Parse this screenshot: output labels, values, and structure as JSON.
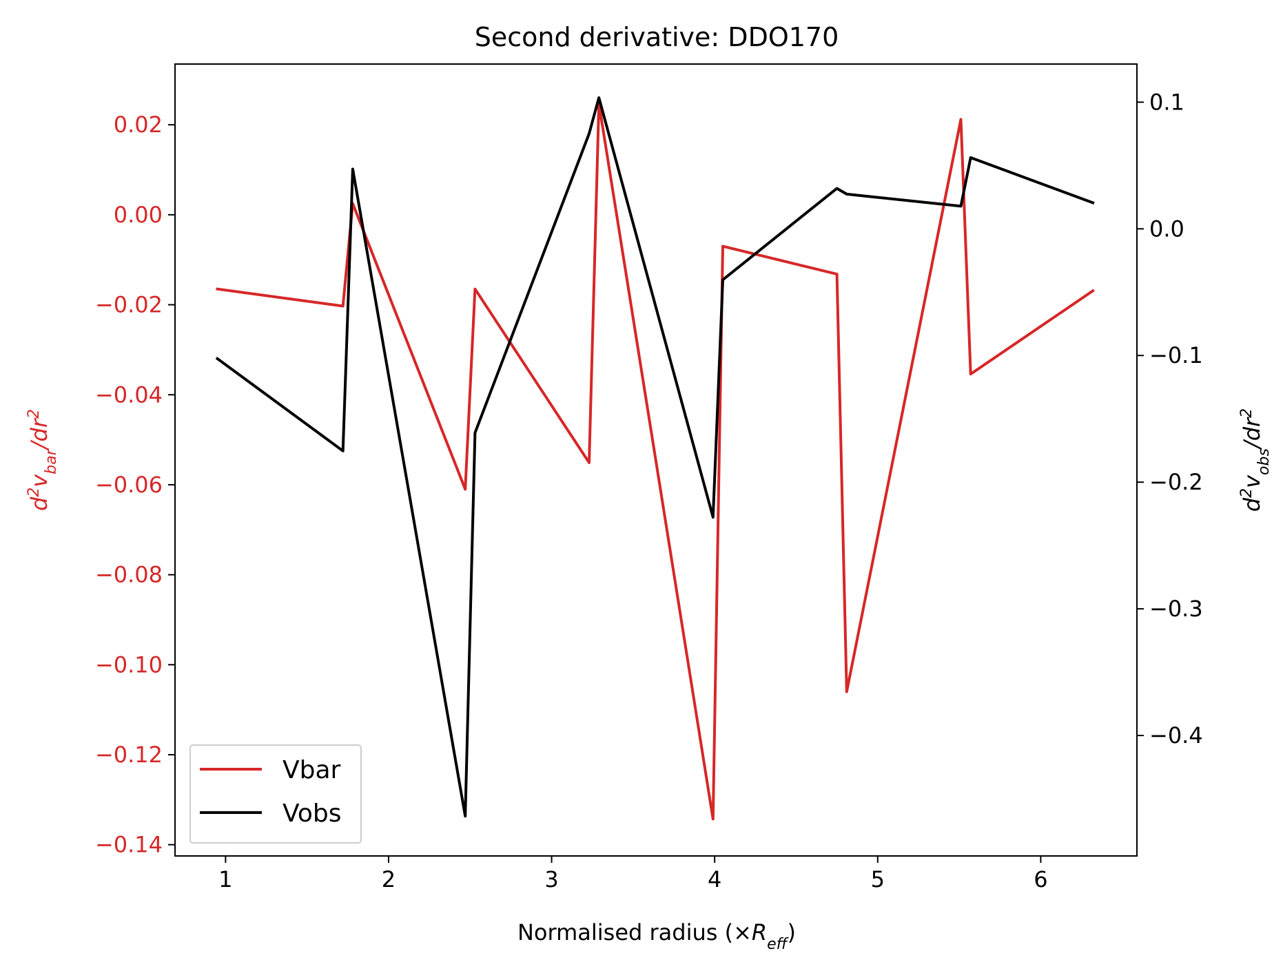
{
  "chart_data": {
    "type": "line",
    "title": "Second derivative: DDO170",
    "xlabel": "Normalised radius (×R_eff)",
    "ylabel_left": "d²v_bar/dr²",
    "ylabel_right": "d²v_obs/dr²",
    "xlim": [
      0.69,
      6.59
    ],
    "ylim_left": [
      -0.1425,
      0.0335
    ],
    "ylim_right": [
      -0.4951,
      0.1301
    ],
    "x_ticks": [
      1,
      2,
      3,
      4,
      5,
      6
    ],
    "x_tick_labels": [
      "1",
      "2",
      "3",
      "4",
      "5",
      "6"
    ],
    "y_left_ticks": [
      0.02,
      0.0,
      -0.02,
      -0.04,
      -0.06,
      -0.08,
      -0.1,
      -0.12,
      -0.14
    ],
    "y_left_tick_labels": [
      "0.02",
      "0.00",
      "−0.02",
      "−0.04",
      "−0.06",
      "−0.08",
      "−0.10",
      "−0.12",
      "−0.14"
    ],
    "y_right_ticks": [
      0.1,
      0.0,
      -0.1,
      -0.2,
      -0.3,
      -0.4
    ],
    "y_right_tick_labels": [
      "0.1",
      "0.0",
      "−0.1",
      "−0.2",
      "−0.3",
      "−0.4"
    ],
    "legend_position": "lower-left",
    "series": [
      {
        "name": "Vbar",
        "axis": "left",
        "color": "#d62728",
        "x": [
          0.95,
          1.72,
          1.78,
          2.47,
          2.53,
          3.23,
          3.29,
          3.99,
          4.05,
          4.75,
          4.81,
          5.51,
          5.57,
          6.32
        ],
        "y": [
          -0.0165,
          -0.0203,
          0.0025,
          -0.061,
          -0.0165,
          -0.0551,
          0.0247,
          -0.1343,
          -0.007,
          -0.0132,
          -0.106,
          0.0212,
          -0.0354,
          -0.0169
        ]
      },
      {
        "name": "Vobs",
        "axis": "right",
        "color": "#000000",
        "x": [
          0.95,
          1.72,
          1.78,
          2.47,
          2.53,
          3.23,
          3.29,
          3.99,
          4.05,
          4.75,
          4.81,
          5.51,
          5.57,
          6.32
        ],
        "y": [
          -0.1025,
          -0.1753,
          0.0472,
          -0.4637,
          -0.1611,
          0.0752,
          0.1035,
          -0.2277,
          -0.0402,
          0.0319,
          0.0274,
          0.0179,
          0.0562,
          0.0206
        ]
      }
    ]
  }
}
